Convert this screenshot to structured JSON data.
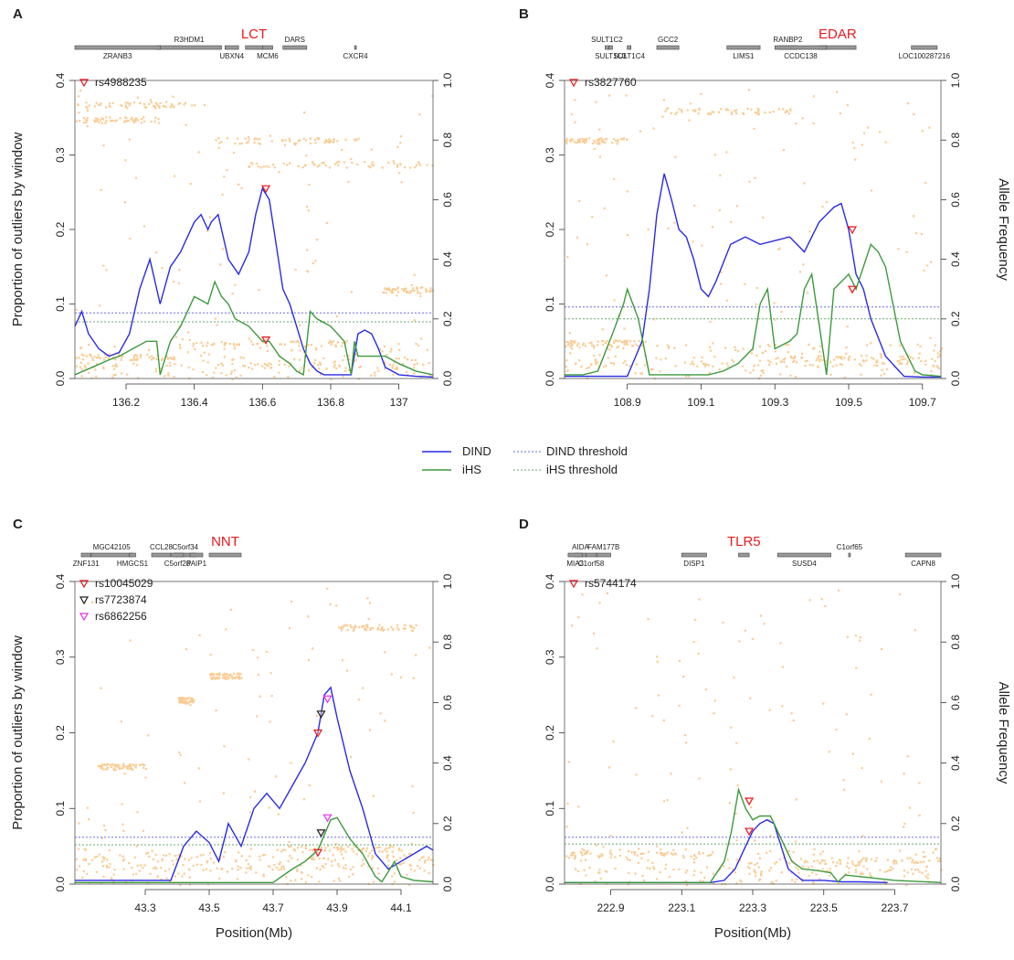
{
  "legend": {
    "dind": "DIND",
    "ihs": "iHS",
    "dind_threshold": "DIND threshold",
    "ihs_threshold": "iHS threshold"
  },
  "colors": {
    "dind": "#2a2ae6",
    "ihs": "#3c9a3c",
    "dind_threshold": "#6a6af0",
    "ihs_threshold": "#6aaa6a",
    "points": "#f9cc94",
    "gene_label": "#e8191c",
    "marker_red": "#e8191c",
    "marker_black": "#222222",
    "marker_magenta": "#e633e6"
  },
  "chart_data": [
    {
      "panel": "A",
      "type": "line",
      "title": "LCT",
      "xlabel": "",
      "ylabel": "Proportion of outliers by window",
      "y2label": "",
      "xlim": [
        136.05,
        137.1
      ],
      "ylim": [
        0,
        0.4
      ],
      "y2lim": [
        0,
        1.0
      ],
      "xticks": [
        136.2,
        136.4,
        136.6,
        136.8,
        137.0
      ],
      "xtick_labels": [
        "136.2",
        "136.4",
        "136.6",
        "136.8",
        "137"
      ],
      "yticks": [
        "0.0",
        "0.1",
        "0.2",
        "0.3",
        "0.4"
      ],
      "y2ticks": [
        "0.0",
        "0.2",
        "0.4",
        "0.6",
        "0.8",
        "1.0"
      ],
      "thresholds": {
        "dind": 0.088,
        "ihs": 0.076
      },
      "genes_top": [
        {
          "name": "R3HDM1",
          "start": 136.29,
          "end": 136.48
        },
        {
          "name": "LCT",
          "start": 136.55,
          "end": 136.6
        },
        {
          "name": "DARS",
          "start": 136.66,
          "end": 136.73
        }
      ],
      "genes_bottom": [
        {
          "name": "ZRANB3",
          "start": 136.05,
          "end": 136.3
        },
        {
          "name": "UBXN4",
          "start": 136.49,
          "end": 136.53
        },
        {
          "name": "MCM6",
          "start": 136.6,
          "end": 136.63
        },
        {
          "name": "CXCR4",
          "start": 136.87,
          "end": 136.875
        }
      ],
      "series": [
        {
          "name": "DIND",
          "x": [
            136.05,
            136.07,
            136.09,
            136.12,
            136.15,
            136.18,
            136.21,
            136.24,
            136.27,
            136.3,
            136.33,
            136.36,
            136.38,
            136.4,
            136.42,
            136.44,
            136.45,
            136.47,
            136.5,
            136.53,
            136.56,
            136.58,
            136.6,
            136.62,
            136.64,
            136.66,
            136.68,
            136.7,
            136.72,
            136.74,
            136.76,
            136.78,
            136.82,
            136.86,
            136.88,
            136.9,
            136.92,
            136.94,
            136.96,
            137.0,
            137.05,
            137.1
          ],
          "values": [
            0.07,
            0.09,
            0.06,
            0.04,
            0.03,
            0.035,
            0.06,
            0.12,
            0.16,
            0.1,
            0.15,
            0.17,
            0.19,
            0.21,
            0.22,
            0.2,
            0.21,
            0.22,
            0.16,
            0.14,
            0.17,
            0.22,
            0.255,
            0.24,
            0.18,
            0.12,
            0.1,
            0.07,
            0.04,
            0.02,
            0.01,
            0.005,
            0.005,
            0.005,
            0.06,
            0.065,
            0.06,
            0.04,
            0.015,
            0.005,
            0.003,
            0.002
          ]
        },
        {
          "name": "iHS",
          "x": [
            136.05,
            136.1,
            136.15,
            136.18,
            136.22,
            136.26,
            136.29,
            136.3,
            136.33,
            136.36,
            136.4,
            136.44,
            136.46,
            136.48,
            136.5,
            136.52,
            136.56,
            136.6,
            136.62,
            136.65,
            136.68,
            136.7,
            136.72,
            136.74,
            136.76,
            136.8,
            136.84,
            136.86,
            136.87,
            136.88,
            136.92,
            136.96,
            137.0,
            137.05,
            137.1
          ],
          "values": [
            0.005,
            0.015,
            0.025,
            0.03,
            0.04,
            0.05,
            0.05,
            0.005,
            0.05,
            0.07,
            0.11,
            0.1,
            0.13,
            0.11,
            0.1,
            0.08,
            0.07,
            0.05,
            0.05,
            0.03,
            0.02,
            0.01,
            0.005,
            0.09,
            0.08,
            0.07,
            0.05,
            0.005,
            0.05,
            0.03,
            0.03,
            0.03,
            0.02,
            0.01,
            0.005
          ]
        }
      ],
      "markers": [
        {
          "label": "rs4988235",
          "color": "red",
          "x": 136.61,
          "dind_y": 0.255,
          "ihs_y": 0.052
        }
      ],
      "allele_bands": [
        {
          "x0": 136.05,
          "x1": 136.4,
          "freq": 0.92
        },
        {
          "x0": 136.05,
          "x1": 136.3,
          "freq": 0.87
        },
        {
          "x0": 136.45,
          "x1": 136.88,
          "freq": 0.8
        },
        {
          "x0": 136.55,
          "x1": 137.1,
          "freq": 0.72
        },
        {
          "x0": 136.05,
          "x1": 136.35,
          "freq": 0.075
        },
        {
          "x0": 136.35,
          "x1": 136.85,
          "freq": 0.12
        },
        {
          "x0": 136.05,
          "x1": 137.1,
          "freq": 0.045
        },
        {
          "x0": 136.95,
          "x1": 137.1,
          "freq": 0.3
        }
      ]
    },
    {
      "panel": "B",
      "type": "line",
      "title": "EDAR",
      "xlabel": "",
      "ylabel": "",
      "y2label": "Allele Frequency",
      "xlim": [
        108.73,
        109.75
      ],
      "ylim": [
        0,
        0.4
      ],
      "y2lim": [
        0,
        1.0
      ],
      "xticks": [
        108.9,
        109.1,
        109.3,
        109.5,
        109.7
      ],
      "xtick_labels": [
        "108.9",
        "109.1",
        "109.3",
        "109.5",
        "109.7"
      ],
      "yticks": [
        "0.0",
        "0.1",
        "0.2",
        "0.3",
        "0.4"
      ],
      "y2ticks": [
        "0.0",
        "0.2",
        "0.4",
        "0.6",
        "0.8",
        "1.0"
      ],
      "thresholds": {
        "dind": 0.096,
        "ihs": 0.08
      },
      "genes_top": [
        {
          "name": "SULT1C2",
          "start": 108.84,
          "end": 108.85
        },
        {
          "name": "GCC2",
          "start": 108.98,
          "end": 109.04
        },
        {
          "name": "RANBP2",
          "start": 109.31,
          "end": 109.36
        },
        {
          "name": "EDAR",
          "start": 109.42,
          "end": 109.52
        }
      ],
      "genes_bottom": [
        {
          "name": "SULT1C3",
          "start": 108.85,
          "end": 108.86
        },
        {
          "name": "SULT1C4",
          "start": 108.9,
          "end": 108.91
        },
        {
          "name": "LIMS1",
          "start": 109.17,
          "end": 109.26
        },
        {
          "name": "CCDC138",
          "start": 109.3,
          "end": 109.44
        },
        {
          "name": "LOC100287216",
          "start": 109.67,
          "end": 109.74
        }
      ],
      "series": [
        {
          "name": "DIND",
          "x": [
            108.73,
            108.85,
            108.9,
            108.94,
            108.96,
            108.98,
            109.0,
            109.02,
            109.04,
            109.06,
            109.08,
            109.1,
            109.12,
            109.14,
            109.18,
            109.22,
            109.26,
            109.3,
            109.34,
            109.38,
            109.42,
            109.46,
            109.48,
            109.5,
            109.52,
            109.54,
            109.56,
            109.6,
            109.65,
            109.7,
            109.75
          ],
          "values": [
            0.003,
            0.003,
            0.003,
            0.05,
            0.12,
            0.22,
            0.275,
            0.24,
            0.2,
            0.19,
            0.16,
            0.12,
            0.11,
            0.13,
            0.18,
            0.19,
            0.18,
            0.185,
            0.19,
            0.17,
            0.21,
            0.23,
            0.235,
            0.2,
            0.14,
            0.12,
            0.08,
            0.03,
            0.003,
            0.002,
            0.002
          ]
        },
        {
          "name": "iHS",
          "x": [
            108.73,
            108.78,
            108.82,
            108.86,
            108.89,
            108.9,
            108.93,
            108.96,
            109.0,
            109.05,
            109.1,
            109.12,
            109.16,
            109.2,
            109.24,
            109.26,
            109.28,
            109.3,
            109.34,
            109.36,
            109.38,
            109.4,
            109.44,
            109.46,
            109.5,
            109.52,
            109.56,
            109.58,
            109.6,
            109.64,
            109.68,
            109.7,
            109.75
          ],
          "values": [
            0.005,
            0.005,
            0.01,
            0.06,
            0.1,
            0.12,
            0.08,
            0.005,
            0.005,
            0.005,
            0.005,
            0.005,
            0.01,
            0.02,
            0.04,
            0.1,
            0.12,
            0.04,
            0.05,
            0.06,
            0.12,
            0.14,
            0.005,
            0.12,
            0.14,
            0.12,
            0.18,
            0.17,
            0.15,
            0.05,
            0.01,
            0.005,
            0.003
          ]
        }
      ],
      "markers": [
        {
          "label": "rs3827760",
          "color": "red",
          "x": 109.51,
          "dind_y": 0.2,
          "ihs_y": 0.12
        }
      ],
      "allele_bands": [
        {
          "x0": 108.99,
          "x1": 109.35,
          "freq": 0.9
        },
        {
          "x0": 108.73,
          "x1": 108.9,
          "freq": 0.8
        },
        {
          "x0": 108.73,
          "x1": 109.75,
          "freq": 0.05
        },
        {
          "x0": 109.3,
          "x1": 109.75,
          "freq": 0.07
        },
        {
          "x0": 108.73,
          "x1": 108.95,
          "freq": 0.12
        }
      ]
    },
    {
      "panel": "C",
      "type": "line",
      "title": "NNT",
      "xlabel": "Position(Mb)",
      "ylabel": "Proportion of outliers by window",
      "y2label": "",
      "xlim": [
        43.08,
        44.2
      ],
      "ylim": [
        0,
        0.4
      ],
      "y2lim": [
        0,
        1.0
      ],
      "xticks": [
        43.3,
        43.5,
        43.7,
        43.9,
        44.1
      ],
      "xtick_labels": [
        "43.3",
        "43.5",
        "43.7",
        "43.9",
        "44.1"
      ],
      "yticks": [
        "0.0",
        "0.1",
        "0.2",
        "0.3",
        "0.4"
      ],
      "y2ticks": [
        "0.0",
        "0.2",
        "0.4",
        "0.6",
        "0.8",
        "1.0"
      ],
      "thresholds": {
        "dind": 0.062,
        "ihs": 0.052
      },
      "genes_top": [
        {
          "name": "MGC42105",
          "start": 43.13,
          "end": 43.26
        },
        {
          "name": "CCL28",
          "start": 43.32,
          "end": 43.38
        },
        {
          "name": "C5orf34",
          "start": 43.39,
          "end": 43.46
        },
        {
          "name": "NNT",
          "start": 43.5,
          "end": 43.6
        }
      ],
      "genes_bottom": [
        {
          "name": "ZNF131",
          "start": 43.1,
          "end": 43.13
        },
        {
          "name": "HMGCS1",
          "start": 43.25,
          "end": 43.27
        },
        {
          "name": "C5orf28",
          "start": 43.38,
          "end": 43.42
        },
        {
          "name": "PAIP1",
          "start": 43.44,
          "end": 43.48
        }
      ],
      "series": [
        {
          "name": "DIND",
          "x": [
            43.08,
            43.2,
            43.3,
            43.38,
            43.42,
            43.46,
            43.5,
            43.53,
            43.56,
            43.6,
            43.64,
            43.68,
            43.72,
            43.76,
            43.8,
            43.84,
            43.86,
            43.88,
            43.9,
            43.94,
            43.98,
            44.02,
            44.06,
            44.1,
            44.14,
            44.18,
            44.2
          ],
          "values": [
            0.005,
            0.005,
            0.005,
            0.005,
            0.05,
            0.07,
            0.055,
            0.03,
            0.08,
            0.05,
            0.1,
            0.12,
            0.1,
            0.13,
            0.16,
            0.2,
            0.25,
            0.26,
            0.22,
            0.15,
            0.1,
            0.04,
            0.02,
            0.03,
            0.04,
            0.05,
            0.045
          ]
        },
        {
          "name": "iHS",
          "x": [
            43.08,
            43.3,
            43.5,
            43.7,
            43.76,
            43.8,
            43.84,
            43.86,
            43.88,
            43.9,
            43.94,
            43.98,
            44.02,
            44.04,
            44.08,
            44.1,
            44.14,
            44.2
          ],
          "values": [
            0.002,
            0.002,
            0.002,
            0.002,
            0.02,
            0.03,
            0.045,
            0.065,
            0.085,
            0.088,
            0.06,
            0.04,
            0.01,
            0.003,
            0.03,
            0.01,
            0.005,
            0.003
          ]
        }
      ],
      "markers": [
        {
          "label": "rs10045029",
          "color": "red",
          "x": 43.84,
          "dind_y": 0.2,
          "ihs_y": 0.042
        },
        {
          "label": "rs7723874",
          "color": "black",
          "x": 43.85,
          "dind_y": 0.225,
          "ihs_y": 0.068
        },
        {
          "label": "rs6862256",
          "color": "magenta",
          "x": 43.87,
          "dind_y": 0.245,
          "ihs_y": 0.088
        }
      ],
      "allele_bands": [
        {
          "x0": 43.5,
          "x1": 43.6,
          "freq": 0.69
        },
        {
          "x0": 43.4,
          "x1": 43.45,
          "freq": 0.61
        },
        {
          "x0": 43.15,
          "x1": 43.3,
          "freq": 0.39
        },
        {
          "x0": 43.08,
          "x1": 44.2,
          "freq": 0.06
        },
        {
          "x0": 43.08,
          "x1": 44.2,
          "freq": 0.09
        },
        {
          "x0": 43.7,
          "x1": 44.1,
          "freq": 0.12
        },
        {
          "x0": 43.9,
          "x1": 44.15,
          "freq": 0.85
        }
      ]
    },
    {
      "panel": "D",
      "type": "line",
      "title": "TLR5",
      "xlabel": "Position(Mb)",
      "ylabel": "",
      "y2label": "Allele Frequency",
      "xlim": [
        222.77,
        223.83
      ],
      "ylim": [
        0,
        0.4
      ],
      "y2lim": [
        0,
        1.0
      ],
      "xticks": [
        222.9,
        223.1,
        223.3,
        223.5,
        223.7
      ],
      "xtick_labels": [
        "222.9",
        "223.1",
        "223.3",
        "223.5",
        "223.7"
      ],
      "yticks": [
        "0.0",
        "0.1",
        "0.2",
        "0.3",
        "0.4"
      ],
      "y2ticks": [
        "0.0",
        "0.2",
        "0.4",
        "0.6",
        "0.8",
        "1.0"
      ],
      "thresholds": {
        "dind": 0.062,
        "ihs": 0.053
      },
      "genes_top": [
        {
          "name": "AIDA",
          "start": 222.8,
          "end": 222.83
        },
        {
          "name": "FAM177B",
          "start": 222.86,
          "end": 222.9
        },
        {
          "name": "TLR5",
          "start": 223.26,
          "end": 223.29
        },
        {
          "name": "C1orf65",
          "start": 223.57,
          "end": 223.575
        }
      ],
      "genes_bottom": [
        {
          "name": "MIA3",
          "start": 222.78,
          "end": 222.82
        },
        {
          "name": "C1orf58",
          "start": 222.83,
          "end": 222.86
        },
        {
          "name": "DISP1",
          "start": 223.1,
          "end": 223.17
        },
        {
          "name": "SUSD4",
          "start": 223.37,
          "end": 223.52
        },
        {
          "name": "CAPN8",
          "start": 223.73,
          "end": 223.83
        }
      ],
      "series": [
        {
          "name": "DIND",
          "x": [
            222.77,
            223.18,
            223.22,
            223.25,
            223.28,
            223.3,
            223.32,
            223.34,
            223.36,
            223.38,
            223.4,
            223.44,
            223.5,
            223.55,
            223.6,
            223.68
          ],
          "values": [
            0.002,
            0.002,
            0.005,
            0.02,
            0.05,
            0.07,
            0.08,
            0.085,
            0.08,
            0.05,
            0.02,
            0.005,
            0.005,
            0.003,
            0.003,
            0.002
          ]
        },
        {
          "name": "iHS",
          "x": [
            222.77,
            223.18,
            223.22,
            223.24,
            223.26,
            223.28,
            223.3,
            223.32,
            223.35,
            223.38,
            223.41,
            223.44,
            223.48,
            223.52,
            223.54,
            223.56,
            223.6,
            223.7,
            223.83
          ],
          "values": [
            0.002,
            0.002,
            0.03,
            0.07,
            0.125,
            0.1,
            0.085,
            0.09,
            0.09,
            0.06,
            0.03,
            0.02,
            0.018,
            0.015,
            0.003,
            0.012,
            0.01,
            0.005,
            0.002
          ]
        }
      ],
      "markers": [
        {
          "label": "rs5744174",
          "color": "red",
          "x": 223.29,
          "dind_y": 0.07,
          "ihs_y": 0.11
        }
      ],
      "allele_bands": [
        {
          "x0": 222.77,
          "x1": 223.83,
          "freq": 0.05
        },
        {
          "x0": 222.77,
          "x1": 223.2,
          "freq": 0.1
        },
        {
          "x0": 223.35,
          "x1": 223.83,
          "freq": 0.08
        }
      ]
    }
  ],
  "panel_letters": [
    "A",
    "B",
    "C",
    "D"
  ]
}
